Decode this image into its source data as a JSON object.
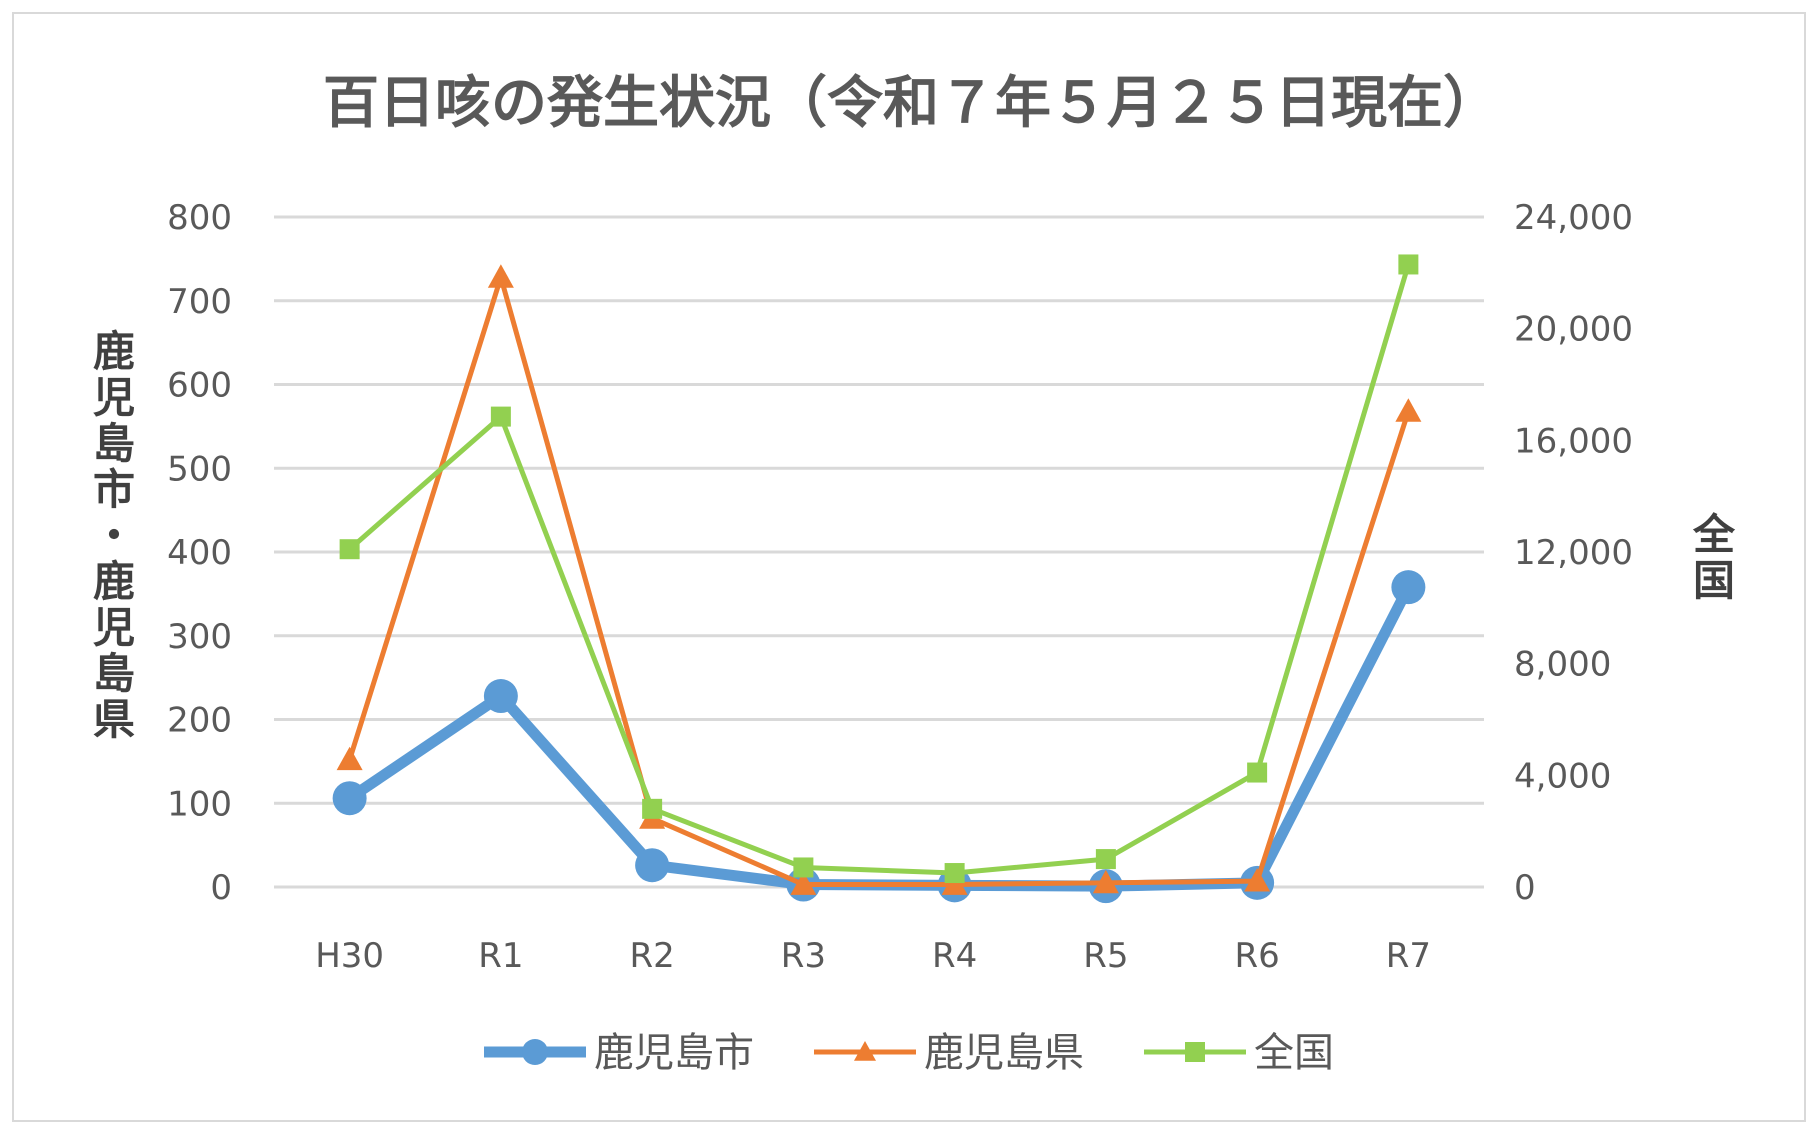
{
  "chart_data": {
    "type": "line",
    "title": "百日咳の発生状況（令和７年５月２５日現在）",
    "categories": [
      "H30",
      "R1",
      "R2",
      "R3",
      "R4",
      "R5",
      "R6",
      "R7"
    ],
    "y_left": {
      "label": "鹿児島市・鹿児島県",
      "range": [
        0,
        800
      ],
      "ticks": [
        "0",
        "100",
        "200",
        "300",
        "400",
        "500",
        "600",
        "700",
        "800"
      ]
    },
    "y_right": {
      "label": "全国",
      "range": [
        0,
        24000
      ],
      "ticks": [
        "0",
        "4,000",
        "8,000",
        "12,000",
        "16,000",
        "20,000",
        "24,000"
      ]
    },
    "series": [
      {
        "name": "鹿児島市",
        "axis": "left",
        "marker": "circle",
        "color": "#5b9bd5",
        "values": [
          106,
          228,
          26,
          3,
          2,
          1,
          5,
          358
        ]
      },
      {
        "name": "鹿児島県",
        "axis": "left",
        "marker": "triangle",
        "color": "#ed7d31",
        "values": [
          152,
          728,
          82,
          3,
          3,
          5,
          7,
          568
        ]
      },
      {
        "name": "全国",
        "axis": "right",
        "marker": "square",
        "color": "#92d050",
        "values": [
          12100,
          16850,
          2800,
          700,
          500,
          1000,
          4100,
          22300
        ]
      }
    ],
    "grid": true,
    "legend": "bottom"
  }
}
